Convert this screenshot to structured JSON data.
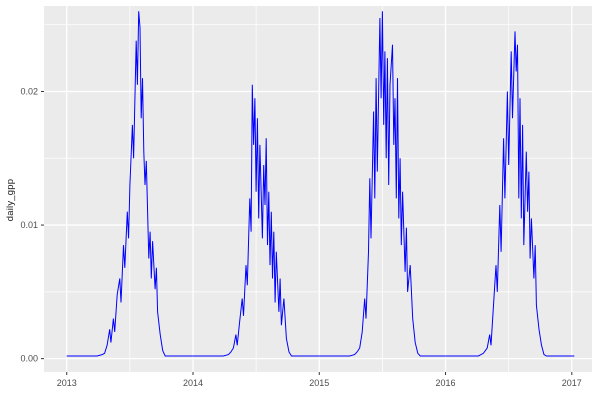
{
  "chart_data": {
    "type": "line",
    "title": "",
    "xlabel": "",
    "ylabel": "daily_gpp",
    "panel_bg": "#EBEBEB",
    "grid_color": "#FFFFFF",
    "line_color": "#0000FF",
    "axis_text_color": "#4D4D4D",
    "tick_mark_color": "#333333",
    "xlim": [
      2012.82,
      2017.16
    ],
    "ylim": [
      -0.001,
      0.0264
    ],
    "x_ticks": [
      {
        "value": 2013,
        "label": "2013"
      },
      {
        "value": 2014,
        "label": "2014"
      },
      {
        "value": 2015,
        "label": "2015"
      },
      {
        "value": 2016,
        "label": "2016"
      },
      {
        "value": 2017,
        "label": "2017"
      }
    ],
    "x_minor_ticks": [
      2013.5,
      2014.5,
      2015.5,
      2016.5
    ],
    "y_ticks": [
      {
        "value": 0.0,
        "label": "0.00"
      },
      {
        "value": 0.01,
        "label": "0.01"
      },
      {
        "value": 0.02,
        "label": "0.02"
      }
    ],
    "y_minor_ticks": [
      0.005,
      0.015,
      0.025
    ],
    "legend": "none",
    "grid": "on",
    "series": [
      {
        "name": "daily_gpp",
        "points": [
          [
            2013.0,
            0.0002
          ],
          [
            2013.06,
            0.0002
          ],
          [
            2013.12,
            0.0002
          ],
          [
            2013.18,
            0.0002
          ],
          [
            2013.24,
            0.0002
          ],
          [
            2013.28,
            0.0003
          ],
          [
            2013.3,
            0.0004
          ],
          [
            2013.32,
            0.001
          ],
          [
            2013.34,
            0.0022
          ],
          [
            2013.35,
            0.0012
          ],
          [
            2013.37,
            0.003
          ],
          [
            2013.38,
            0.002
          ],
          [
            2013.4,
            0.0048
          ],
          [
            2013.42,
            0.006
          ],
          [
            2013.43,
            0.0042
          ],
          [
            2013.45,
            0.0085
          ],
          [
            2013.46,
            0.0068
          ],
          [
            2013.48,
            0.011
          ],
          [
            2013.49,
            0.009
          ],
          [
            2013.5,
            0.013
          ],
          [
            2013.52,
            0.0175
          ],
          [
            2013.53,
            0.015
          ],
          [
            2013.55,
            0.0238
          ],
          [
            2013.56,
            0.0205
          ],
          [
            2013.57,
            0.026
          ],
          [
            2013.58,
            0.0248
          ],
          [
            2013.59,
            0.018
          ],
          [
            2013.6,
            0.021
          ],
          [
            2013.61,
            0.0155
          ],
          [
            2013.62,
            0.013
          ],
          [
            2013.63,
            0.0148
          ],
          [
            2013.65,
            0.0075
          ],
          [
            2013.66,
            0.0095
          ],
          [
            2013.67,
            0.006
          ],
          [
            2013.68,
            0.0088
          ],
          [
            2013.7,
            0.0052
          ],
          [
            2013.71,
            0.0068
          ],
          [
            2013.72,
            0.0035
          ],
          [
            2013.74,
            0.0018
          ],
          [
            2013.76,
            0.0006
          ],
          [
            2013.78,
            0.0002
          ],
          [
            2013.85,
            0.0002
          ],
          [
            2013.92,
            0.0002
          ],
          [
            2014.0,
            0.0002
          ],
          [
            2014.08,
            0.0002
          ],
          [
            2014.16,
            0.0002
          ],
          [
            2014.24,
            0.0002
          ],
          [
            2014.28,
            0.0003
          ],
          [
            2014.3,
            0.0005
          ],
          [
            2014.32,
            0.0008
          ],
          [
            2014.34,
            0.0018
          ],
          [
            2014.35,
            0.001
          ],
          [
            2014.37,
            0.0028
          ],
          [
            2014.39,
            0.0045
          ],
          [
            2014.4,
            0.0032
          ],
          [
            2014.42,
            0.007
          ],
          [
            2014.43,
            0.0055
          ],
          [
            2014.45,
            0.012
          ],
          [
            2014.46,
            0.0095
          ],
          [
            2014.47,
            0.0205
          ],
          [
            2014.48,
            0.016
          ],
          [
            2014.49,
            0.0195
          ],
          [
            2014.5,
            0.0125
          ],
          [
            2014.51,
            0.018
          ],
          [
            2014.52,
            0.0105
          ],
          [
            2014.53,
            0.016
          ],
          [
            2014.55,
            0.009
          ],
          [
            2014.56,
            0.0145
          ],
          [
            2014.57,
            0.0115
          ],
          [
            2014.58,
            0.0165
          ],
          [
            2014.59,
            0.0085
          ],
          [
            2014.6,
            0.0125
          ],
          [
            2014.61,
            0.007
          ],
          [
            2014.62,
            0.011
          ],
          [
            2014.63,
            0.006
          ],
          [
            2014.64,
            0.0095
          ],
          [
            2014.65,
            0.0042
          ],
          [
            2014.66,
            0.008
          ],
          [
            2014.68,
            0.0035
          ],
          [
            2014.69,
            0.006
          ],
          [
            2014.7,
            0.0025
          ],
          [
            2014.72,
            0.0045
          ],
          [
            2014.74,
            0.0015
          ],
          [
            2014.76,
            0.0005
          ],
          [
            2014.78,
            0.0002
          ],
          [
            2014.85,
            0.0002
          ],
          [
            2014.92,
            0.0002
          ],
          [
            2015.0,
            0.0002
          ],
          [
            2015.08,
            0.0002
          ],
          [
            2015.16,
            0.0002
          ],
          [
            2015.24,
            0.0002
          ],
          [
            2015.28,
            0.0003
          ],
          [
            2015.3,
            0.0005
          ],
          [
            2015.32,
            0.0008
          ],
          [
            2015.34,
            0.002
          ],
          [
            2015.36,
            0.0045
          ],
          [
            2015.37,
            0.003
          ],
          [
            2015.39,
            0.008
          ],
          [
            2015.4,
            0.0135
          ],
          [
            2015.41,
            0.009
          ],
          [
            2015.43,
            0.0185
          ],
          [
            2015.44,
            0.012
          ],
          [
            2015.45,
            0.021
          ],
          [
            2015.46,
            0.014
          ],
          [
            2015.48,
            0.0255
          ],
          [
            2015.49,
            0.0195
          ],
          [
            2015.5,
            0.026
          ],
          [
            2015.51,
            0.0175
          ],
          [
            2015.52,
            0.023
          ],
          [
            2015.53,
            0.015
          ],
          [
            2015.54,
            0.0225
          ],
          [
            2015.55,
            0.013
          ],
          [
            2015.56,
            0.0205
          ],
          [
            2015.58,
            0.0235
          ],
          [
            2015.59,
            0.016
          ],
          [
            2015.6,
            0.0195
          ],
          [
            2015.61,
            0.012
          ],
          [
            2015.62,
            0.021
          ],
          [
            2015.63,
            0.0105
          ],
          [
            2015.64,
            0.015
          ],
          [
            2015.65,
            0.0085
          ],
          [
            2015.66,
            0.0125
          ],
          [
            2015.68,
            0.0065
          ],
          [
            2015.69,
            0.0098
          ],
          [
            2015.7,
            0.005
          ],
          [
            2015.72,
            0.007
          ],
          [
            2015.74,
            0.003
          ],
          [
            2015.76,
            0.0012
          ],
          [
            2015.78,
            0.0004
          ],
          [
            2015.8,
            0.0002
          ],
          [
            2015.87,
            0.0002
          ],
          [
            2015.94,
            0.0002
          ],
          [
            2016.02,
            0.0002
          ],
          [
            2016.1,
            0.0002
          ],
          [
            2016.18,
            0.0002
          ],
          [
            2016.26,
            0.0002
          ],
          [
            2016.3,
            0.0004
          ],
          [
            2016.33,
            0.0008
          ],
          [
            2016.35,
            0.0018
          ],
          [
            2016.36,
            0.001
          ],
          [
            2016.38,
            0.004
          ],
          [
            2016.4,
            0.007
          ],
          [
            2016.41,
            0.005
          ],
          [
            2016.43,
            0.0115
          ],
          [
            2016.44,
            0.008
          ],
          [
            2016.46,
            0.0165
          ],
          [
            2016.47,
            0.012
          ],
          [
            2016.49,
            0.02
          ],
          [
            2016.5,
            0.0145
          ],
          [
            2016.52,
            0.023
          ],
          [
            2016.53,
            0.018
          ],
          [
            2016.55,
            0.0245
          ],
          [
            2016.56,
            0.0215
          ],
          [
            2016.57,
            0.0235
          ],
          [
            2016.58,
            0.012
          ],
          [
            2016.59,
            0.0195
          ],
          [
            2016.6,
            0.0105
          ],
          [
            2016.61,
            0.0175
          ],
          [
            2016.62,
            0.0085
          ],
          [
            2016.64,
            0.0155
          ],
          [
            2016.65,
            0.011
          ],
          [
            2016.66,
            0.014
          ],
          [
            2016.67,
            0.0075
          ],
          [
            2016.68,
            0.0105
          ],
          [
            2016.7,
            0.006
          ],
          [
            2016.71,
            0.0085
          ],
          [
            2016.72,
            0.004
          ],
          [
            2016.74,
            0.0022
          ],
          [
            2016.76,
            0.001
          ],
          [
            2016.78,
            0.0003
          ],
          [
            2016.8,
            0.0002
          ],
          [
            2016.87,
            0.0002
          ],
          [
            2016.94,
            0.0002
          ],
          [
            2017.0,
            0.0002
          ],
          [
            2017.02,
            0.0002
          ]
        ]
      }
    ]
  }
}
